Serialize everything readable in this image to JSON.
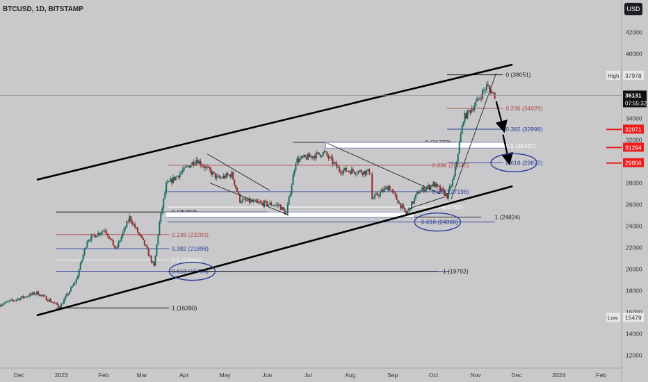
{
  "header": {
    "symbol": "BTCUSD, 1D, BITSTAMP",
    "currency_button": "USD"
  },
  "colors": {
    "bg": "#c9c9cb",
    "up": "#1d6b63",
    "down": "#8e2a2a",
    "fib_red": "#b04a4a",
    "fib_blue": "#2a3d9a",
    "axis_text": "#333333",
    "price_red": "#ee1b1b"
  },
  "chart_data": {
    "type": "candlestick",
    "ylim": [
      10800,
      45000
    ],
    "xlim": [
      "2022-11-17",
      "2024-02-16"
    ],
    "y_ticks": [
      12000,
      14000,
      16000,
      18000,
      20000,
      22000,
      24000,
      26000,
      28000,
      30000,
      32000,
      34000,
      36000,
      38000,
      40000,
      42000
    ],
    "y_tick_labels": [
      "12000",
      "14000",
      "16000",
      "18000",
      "20000",
      "22000",
      "24000",
      "26000",
      "28000",
      "30000",
      "32000",
      "34000",
      "36000",
      "38000",
      "40000",
      "42000"
    ],
    "x_ticks": [
      {
        "date": "2022-12-01",
        "label": "Dec"
      },
      {
        "date": "2023-01-01",
        "label": "2023"
      },
      {
        "date": "2023-02-01",
        "label": "Feb"
      },
      {
        "date": "2023-03-01",
        "label": "Mar"
      },
      {
        "date": "2023-04-01",
        "label": "Apr"
      },
      {
        "date": "2023-05-01",
        "label": "May"
      },
      {
        "date": "2023-06-01",
        "label": "Jun"
      },
      {
        "date": "2023-07-01",
        "label": "Jul"
      },
      {
        "date": "2023-08-01",
        "label": "Aug"
      },
      {
        "date": "2023-09-01",
        "label": "Sep"
      },
      {
        "date": "2023-10-01",
        "label": "Oct"
      },
      {
        "date": "2023-11-01",
        "label": "Nov"
      },
      {
        "date": "2023-12-01",
        "label": "Dec"
      },
      {
        "date": "2024-01-01",
        "label": "2024"
      },
      {
        "date": "2024-02-01",
        "label": "Feb"
      }
    ],
    "series": [
      {
        "name": "BTCUSD",
        "closes": [
          {
            "date": "2022-11-17",
            "close": 16700
          },
          {
            "date": "2022-12-14",
            "close": 17800
          },
          {
            "date": "2022-12-31",
            "close": 16500
          },
          {
            "date": "2023-01-12",
            "close": 19000
          },
          {
            "date": "2023-01-20",
            "close": 22700
          },
          {
            "date": "2023-02-02",
            "close": 23700
          },
          {
            "date": "2023-02-10",
            "close": 21800
          },
          {
            "date": "2023-02-20",
            "close": 24800
          },
          {
            "date": "2023-03-03",
            "close": 22300
          },
          {
            "date": "2023-03-10",
            "close": 20200
          },
          {
            "date": "2023-03-14",
            "close": 24300
          },
          {
            "date": "2023-03-19",
            "close": 27800
          },
          {
            "date": "2023-04-10",
            "close": 30200
          },
          {
            "date": "2023-04-26",
            "close": 28400
          },
          {
            "date": "2023-05-06",
            "close": 28800
          },
          {
            "date": "2023-05-12",
            "close": 26400
          },
          {
            "date": "2023-06-10",
            "close": 25900
          },
          {
            "date": "2023-06-15",
            "close": 25100
          },
          {
            "date": "2023-06-22",
            "close": 30100
          },
          {
            "date": "2023-07-13",
            "close": 30800
          },
          {
            "date": "2023-07-24",
            "close": 29200
          },
          {
            "date": "2023-08-16",
            "close": 29000
          },
          {
            "date": "2023-08-17",
            "close": 26500
          },
          {
            "date": "2023-08-29",
            "close": 27700
          },
          {
            "date": "2023-09-11",
            "close": 25100
          },
          {
            "date": "2023-09-20",
            "close": 27200
          },
          {
            "date": "2023-10-01",
            "close": 27900
          },
          {
            "date": "2023-10-11",
            "close": 26800
          },
          {
            "date": "2023-10-16",
            "close": 28500
          },
          {
            "date": "2023-10-23",
            "close": 34000
          },
          {
            "date": "2023-11-01",
            "close": 35400
          },
          {
            "date": "2023-11-09",
            "close": 37000
          },
          {
            "date": "2023-11-15",
            "close": 36131
          }
        ]
      }
    ],
    "channel": {
      "upper": [
        {
          "date": "2022-12-14",
          "price": 28300
        },
        {
          "date": "2023-11-28",
          "price": 39000
        }
      ],
      "lower": [
        {
          "date": "2022-12-14",
          "price": 15700
        },
        {
          "date": "2023-11-28",
          "price": 27700
        }
      ]
    },
    "wedges": [
      {
        "upper": [
          {
            "date": "2023-04-18",
            "price": 30700
          },
          {
            "date": "2023-06-03",
            "price": 27300
          }
        ],
        "lower": [
          {
            "date": "2023-04-20",
            "price": 28000
          },
          {
            "date": "2023-06-17",
            "price": 25000
          }
        ]
      },
      {
        "upper": [
          {
            "date": "2023-07-15",
            "price": 31700
          },
          {
            "date": "2023-10-06",
            "price": 27000
          }
        ],
        "lower": [
          {
            "date": "2023-09-15",
            "price": 25700
          },
          {
            "date": "2023-10-09",
            "price": 26700
          }
        ]
      }
    ],
    "trendline": [
      {
        "date": "2023-10-14",
        "price": 26500
      },
      {
        "date": "2023-11-16",
        "price": 38200
      }
    ],
    "arrows": [
      {
        "from": {
          "date": "2023-11-16",
          "price": 35600
        },
        "to": {
          "date": "2023-11-21",
          "price": 33200
        }
      },
      {
        "from": {
          "date": "2023-11-21",
          "price": 32500
        },
        "to": {
          "date": "2023-11-25",
          "price": 30200
        }
      }
    ],
    "fib_sets": [
      {
        "levels": [
          {
            "label": "0 (25303)",
            "price": 25303,
            "color": "black"
          },
          {
            "label": "0.236 (23200)",
            "price": 23200,
            "color": "red"
          },
          {
            "label": "0.382 (21898)",
            "price": 21898,
            "color": "blue"
          },
          {
            "label": "0.5 (20846)",
            "price": 20846,
            "color": "white"
          },
          {
            "label": "0.618 (19794)",
            "price": 19794,
            "color": "blue"
          },
          {
            "label": "1 (16390)",
            "price": 16390,
            "color": "black"
          }
        ]
      },
      {
        "levels": [
          {
            "label": "0 (31773)",
            "price": 31773,
            "color": "black"
          },
          {
            "label": "0.236 (29645)",
            "price": 29645,
            "color": "red"
          },
          {
            "label": "0.382 (27196)",
            "price": 27196,
            "color": "blue"
          },
          {
            "label": "0.5 (25762)",
            "price": 25762,
            "color": "white"
          },
          {
            "label": "0.618 (24369)",
            "price": 24369,
            "color": "blue"
          },
          {
            "label": "1 (24824)",
            "price": 24824,
            "color": "black"
          },
          {
            "label": "1 (19792)",
            "price": 19792,
            "color": "black"
          }
        ]
      },
      {
        "levels": [
          {
            "label": "0 (38051)",
            "price": 38051,
            "color": "black"
          },
          {
            "label": "0.236 (34929)",
            "price": 34929,
            "color": "red"
          },
          {
            "label": "0.382 (32998)",
            "price": 32998,
            "color": "blue"
          },
          {
            "label": "0.5 (31437)",
            "price": 31437,
            "color": "white"
          },
          {
            "label": "0.618 (29877)",
            "price": 29877,
            "color": "blue"
          }
        ]
      }
    ],
    "zones": [
      {
        "from": "2023-03-18",
        "to": "2023-09-17",
        "top": 25303,
        "bottom": 24800
      },
      {
        "from": "2023-07-14",
        "to": "2023-11-23",
        "top": 31773,
        "bottom": 31250
      }
    ],
    "price_axis_labels": [
      {
        "name": "high",
        "tag": "High",
        "value": "37978",
        "price": 37978
      },
      {
        "name": "last",
        "value": "36131",
        "sub": "07:55:32",
        "price": 36131
      },
      {
        "name": "level-32971",
        "value": "32971",
        "price": 32971
      },
      {
        "name": "level-31294",
        "value": "31294",
        "price": 31294
      },
      {
        "name": "level-29856",
        "value": "29856",
        "price": 29856
      },
      {
        "name": "low",
        "tag": "Low",
        "value": "15479",
        "price": 15479
      }
    ]
  }
}
